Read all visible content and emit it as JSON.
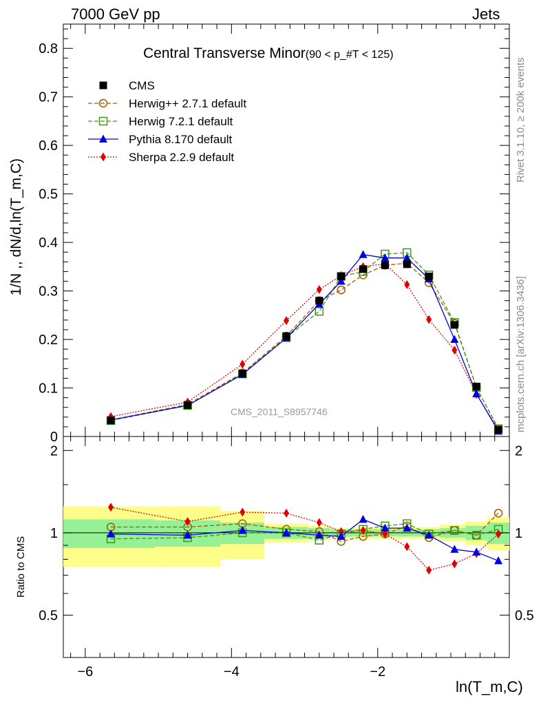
{
  "header": {
    "left": "7000 GeV pp",
    "right": "Jets"
  },
  "side_labels": {
    "rivet": "Rivet 3.1.10, ≥ 200k events",
    "mcplots": "mcplots.cern.ch [arXiv:1306.3436]"
  },
  "watermark": "CMS_2011_S8957746",
  "chart_data": {
    "type": "line",
    "title": "Central Transverse Minor",
    "title_cut": "(90 < p_#T < 125)",
    "xlabel": "ln(T_m,C)",
    "ylabel": "1/N ,, dN/d,ln(T_m,C)",
    "ratio_ylabel": "Ratio to CMS",
    "xlim": [
      -6.3,
      -0.2
    ],
    "ylim": [
      0,
      0.85
    ],
    "ratio_ylim": [
      0.35,
      2.25
    ],
    "x_ticks": [
      "−6",
      "−4",
      "−2"
    ],
    "y_ticks": [
      "0",
      "0.1",
      "0.2",
      "0.3",
      "0.4",
      "0.5",
      "0.6",
      "0.7",
      "0.8"
    ],
    "ratio_y_ticks": [
      "0.5",
      "1",
      "2"
    ],
    "x": [
      -5.65,
      -4.6,
      -3.85,
      -3.25,
      -2.8,
      -2.5,
      -2.2,
      -1.9,
      -1.6,
      -1.3,
      -0.95,
      -0.65,
      -0.35
    ],
    "bin_edges": [
      -6.3,
      -5.05,
      -4.15,
      -3.55,
      -2.95,
      -2.65,
      -2.35,
      -2.05,
      -1.75,
      -1.45,
      -1.15,
      -0.8,
      -0.5,
      -0.2
    ],
    "band_inner": [
      0.12,
      0.11,
      0.09,
      0.05,
      0.04,
      0.03,
      0.03,
      0.03,
      0.03,
      0.03,
      0.04,
      0.06,
      0.09
    ],
    "band_outer": [
      0.25,
      0.25,
      0.2,
      0.08,
      0.06,
      0.04,
      0.05,
      0.05,
      0.05,
      0.05,
      0.07,
      0.1,
      0.14
    ],
    "legend_position": "top-left",
    "series": [
      {
        "name": "CMS",
        "color": "#000000",
        "marker": "filled-square",
        "values": [
          0.033,
          0.065,
          0.13,
          0.207,
          0.28,
          0.33,
          0.345,
          0.353,
          0.355,
          0.33,
          0.23,
          0.103,
          0.014
        ],
        "ratio": [
          1,
          1,
          1,
          1,
          1,
          1,
          1,
          1,
          1,
          1,
          1,
          1,
          1
        ]
      },
      {
        "name": "Herwig++ 2.7.1 default",
        "color": "#a05a00",
        "marker": "open-circle",
        "values": [
          0.034,
          0.066,
          0.131,
          0.207,
          0.28,
          0.302,
          0.333,
          0.353,
          0.357,
          0.317,
          0.233,
          0.101,
          0.016
        ],
        "ratio": [
          1.05,
          1.05,
          1.08,
          1.03,
          1.01,
          0.93,
          0.97,
          0.99,
          1.06,
          0.96,
          1.02,
          0.98,
          1.18
        ]
      },
      {
        "name": "Herwig 7.2.1 default",
        "color": "#3a9a10",
        "marker": "open-square",
        "values": [
          0.033,
          0.064,
          0.129,
          0.204,
          0.258,
          0.33,
          0.34,
          0.376,
          0.379,
          0.333,
          0.235,
          0.101,
          0.016
        ],
        "ratio": [
          0.95,
          0.96,
          1.0,
          1.0,
          0.94,
          0.99,
          1.03,
          1.06,
          1.08,
          0.99,
          1.02,
          0.98,
          1.03
        ]
      },
      {
        "name": "Pythia 8.170 default",
        "color": "#0000e0",
        "marker": "filled-triangle",
        "values": [
          0.034,
          0.064,
          0.128,
          0.203,
          0.273,
          0.32,
          0.375,
          0.368,
          0.368,
          0.325,
          0.2,
          0.088,
          0.011
        ],
        "ratio": [
          0.99,
          0.98,
          1.02,
          1.0,
          0.98,
          0.97,
          1.12,
          1.04,
          1.04,
          0.98,
          0.87,
          0.85,
          0.79
        ]
      },
      {
        "name": "Sherpa 2.2.9 default",
        "color": "#e00000",
        "marker": "filled-diamond",
        "values": [
          0.041,
          0.071,
          0.149,
          0.239,
          0.303,
          0.332,
          0.35,
          0.356,
          0.313,
          0.241,
          0.178,
          0.087,
          0.014
        ],
        "ratio": [
          1.24,
          1.1,
          1.19,
          1.18,
          1.09,
          1.01,
          1.02,
          0.99,
          0.89,
          0.73,
          0.77,
          0.84,
          0.99
        ]
      }
    ]
  }
}
